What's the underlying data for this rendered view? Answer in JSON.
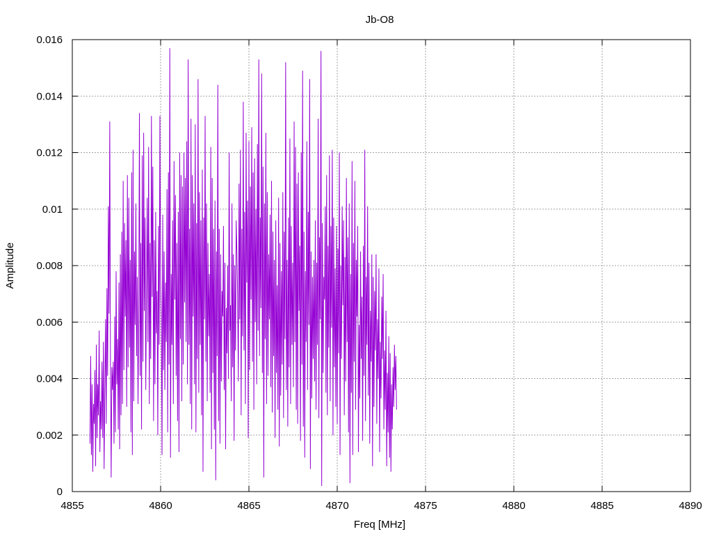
{
  "chart_data": {
    "type": "line",
    "title": "Jb-O8",
    "xlabel": "Freq [MHz]",
    "ylabel": "Amplitude",
    "xlim": [
      4855,
      4890
    ],
    "ylim": [
      0,
      0.016
    ],
    "x_ticks": [
      4855,
      4860,
      4865,
      4870,
      4875,
      4880,
      4885,
      4890
    ],
    "x_tick_labels": [
      "4855",
      "4860",
      "4865",
      "4870",
      "4875",
      "4880",
      "4885",
      "4890"
    ],
    "y_ticks": [
      0,
      0.002,
      0.004,
      0.006,
      0.008,
      0.01,
      0.012,
      0.014,
      0.016
    ],
    "y_tick_labels": [
      "0",
      "0.002",
      "0.004",
      "0.006",
      "0.008",
      "0.01",
      "0.012",
      "0.014",
      "0.016"
    ],
    "grid": true,
    "line_color": "#9400d3",
    "series": [
      {
        "name": "",
        "x_start": 4856.0,
        "x_step": 0.04,
        "values": [
          0.0017,
          0.0048,
          0.0013,
          0.0038,
          0.0007,
          0.0031,
          0.0024,
          0.0043,
          0.0009,
          0.0052,
          0.0019,
          0.0038,
          0.0027,
          0.0057,
          0.0014,
          0.0032,
          0.0022,
          0.0046,
          0.0019,
          0.0053,
          0.0008,
          0.0036,
          0.0061,
          0.0024,
          0.0072,
          0.0041,
          0.0101,
          0.0063,
          0.0131,
          0.0048,
          0.0005,
          0.0044,
          0.0036,
          0.0046,
          0.0017,
          0.0062,
          0.0021,
          0.0078,
          0.0038,
          0.0054,
          0.0022,
          0.0074,
          0.0015,
          0.0084,
          0.0027,
          0.0092,
          0.0031,
          0.011,
          0.0043,
          0.0095,
          0.0062,
          0.0089,
          0.003,
          0.0112,
          0.0044,
          0.0104,
          0.0051,
          0.0082,
          0.0021,
          0.0113,
          0.0013,
          0.0121,
          0.0032,
          0.0085,
          0.0059,
          0.0102,
          0.0048,
          0.0076,
          0.0031,
          0.0058,
          0.0134,
          0.0041,
          0.0088,
          0.0022,
          0.0119,
          0.0046,
          0.0127,
          0.0064,
          0.0097,
          0.0036,
          0.0072,
          0.0104,
          0.0053,
          0.0122,
          0.0031,
          0.0088,
          0.0047,
          0.0133,
          0.0069,
          0.0115,
          0.0025,
          0.0089,
          0.0038,
          0.0099,
          0.0056,
          0.0071,
          0.002,
          0.0094,
          0.0052,
          0.0133,
          0.0075,
          0.0062,
          0.0013,
          0.0098,
          0.0043,
          0.0085,
          0.0036,
          0.0074,
          0.0053,
          0.0107,
          0.0021,
          0.0113,
          0.0045,
          0.0157,
          0.0012,
          0.0077,
          0.0052,
          0.0096,
          0.0031,
          0.0117,
          0.0068,
          0.0105,
          0.0041,
          0.0088,
          0.0025,
          0.0099,
          0.0014,
          0.012,
          0.0054,
          0.0112,
          0.0032,
          0.0108,
          0.0045,
          0.012,
          0.0067,
          0.0111,
          0.0053,
          0.0124,
          0.0038,
          0.0153,
          0.0052,
          0.0093,
          0.0031,
          0.0132,
          0.0022,
          0.0112,
          0.0062,
          0.0102,
          0.0038,
          0.013,
          0.0021,
          0.0095,
          0.0047,
          0.0146,
          0.0035,
          0.0106,
          0.0052,
          0.0096,
          0.0027,
          0.0114,
          0.0007,
          0.0097,
          0.0061,
          0.0133,
          0.0046,
          0.0102,
          0.0032,
          0.0088,
          0.0055,
          0.0077,
          0.0035,
          0.0122,
          0.0015,
          0.0111,
          0.0042,
          0.0093,
          0.0022,
          0.0103,
          0.0004,
          0.0085,
          0.0048,
          0.0144,
          0.0025,
          0.0093,
          0.0017,
          0.0084,
          0.0039,
          0.0071,
          0.0062,
          0.0094,
          0.0036,
          0.0081,
          0.0015,
          0.0065,
          0.0049,
          0.008,
          0.004,
          0.012,
          0.0057,
          0.0066,
          0.0032,
          0.0102,
          0.0044,
          0.0084,
          0.0018,
          0.008,
          0.005,
          0.0096,
          0.0085,
          0.007,
          0.0039,
          0.0109,
          0.0061,
          0.0121,
          0.0027,
          0.0093,
          0.0055,
          0.0138,
          0.005,
          0.0099,
          0.0031,
          0.0127,
          0.0074,
          0.0103,
          0.0019,
          0.0124,
          0.0043,
          0.0108,
          0.0068,
          0.0129,
          0.0046,
          0.0113,
          0.0029,
          0.0118,
          0.006,
          0.01,
          0.0038,
          0.0123,
          0.0057,
          0.0153,
          0.0048,
          0.0097,
          0.0065,
          0.0148,
          0.0042,
          0.0115,
          0.0005,
          0.0102,
          0.0054,
          0.0127,
          0.0031,
          0.0106,
          0.0041,
          0.0084,
          0.0061,
          0.0098,
          0.0037,
          0.011,
          0.0028,
          0.0092,
          0.0048,
          0.0082,
          0.0019,
          0.0096,
          0.0042,
          0.0073,
          0.0029,
          0.0104,
          0.0016,
          0.0088,
          0.0034,
          0.0078,
          0.0045,
          0.0106,
          0.0026,
          0.0092,
          0.0054,
          0.0152,
          0.0036,
          0.0082,
          0.0023,
          0.0097,
          0.0044,
          0.0125,
          0.0031,
          0.0094,
          0.0052,
          0.0081,
          0.0037,
          0.0131,
          0.0053,
          0.0122,
          0.0029,
          0.0109,
          0.0024,
          0.0113,
          0.0064,
          0.0087,
          0.0018,
          0.012,
          0.0045,
          0.0149,
          0.0023,
          0.0092,
          0.0012,
          0.0078,
          0.0053,
          0.0124,
          0.0036,
          0.0099,
          0.0059,
          0.0146,
          0.0008,
          0.0085,
          0.0033,
          0.0076,
          0.0047,
          0.0082,
          0.0039,
          0.0096,
          0.0029,
          0.0081,
          0.0052,
          0.0132,
          0.0026,
          0.009,
          0.0061,
          0.0156,
          0.0002,
          0.0095,
          0.0042,
          0.0076,
          0.0068,
          0.0101,
          0.0035,
          0.0112,
          0.0027,
          0.0087,
          0.0051,
          0.0119,
          0.0032,
          0.0094,
          0.0058,
          0.0121,
          0.002,
          0.0097,
          0.0044,
          0.0079,
          0.003,
          0.0094,
          0.0024,
          0.0086,
          0.0049,
          0.012,
          0.0013,
          0.008,
          0.0047,
          0.0101,
          0.0066,
          0.0096,
          0.0027,
          0.0083,
          0.0039,
          0.0111,
          0.0053,
          0.009,
          0.0021,
          0.0102,
          0.0003,
          0.0077,
          0.0035,
          0.0117,
          0.0013,
          0.0088,
          0.0046,
          0.011,
          0.0029,
          0.0082,
          0.0062,
          0.0094,
          0.0014,
          0.0059,
          0.0033,
          0.0085,
          0.0047,
          0.0069,
          0.0018,
          0.0087,
          0.0041,
          0.0121,
          0.0025,
          0.0076,
          0.0052,
          0.0101,
          0.0034,
          0.0081,
          0.0017,
          0.0064,
          0.0046,
          0.0084,
          0.0009,
          0.0076,
          0.003,
          0.0071,
          0.005,
          0.0084,
          0.0024,
          0.0061,
          0.004,
          0.0079,
          0.0014,
          0.0053,
          0.0033,
          0.0069,
          0.0047,
          0.0077,
          0.0022,
          0.005,
          0.0029,
          0.0064,
          0.0009,
          0.0042,
          0.0021,
          0.0055,
          0.0012,
          0.0049,
          0.0007,
          0.0038,
          0.0022,
          0.0044,
          0.003,
          0.0052,
          0.0036,
          0.0048,
          0.0029
        ]
      }
    ]
  }
}
